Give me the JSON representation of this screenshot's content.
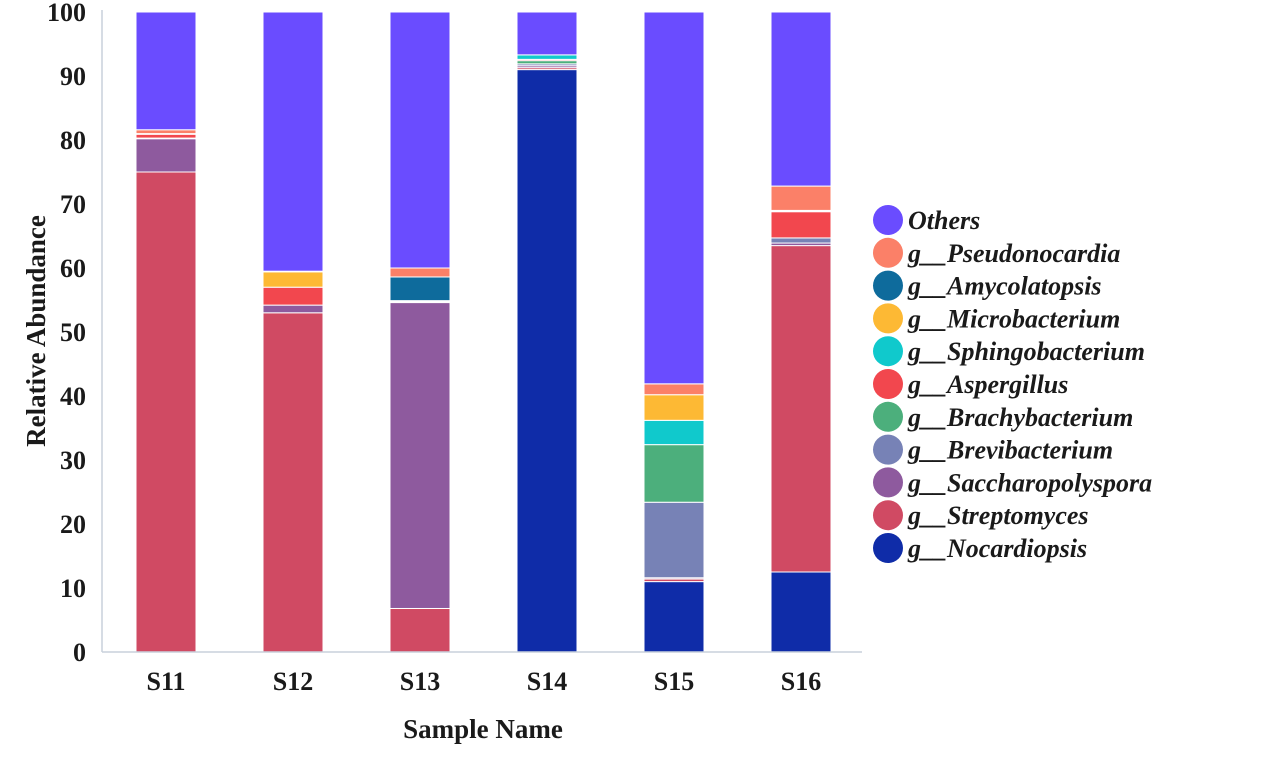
{
  "chart_data": {
    "type": "bar",
    "stacked": true,
    "xlabel": "Sample Name",
    "ylabel": "Relative Abundance",
    "ylim": [
      0,
      100
    ],
    "yticks": [
      0,
      10,
      20,
      30,
      40,
      50,
      60,
      70,
      80,
      90,
      100
    ],
    "categories": [
      "S11",
      "S12",
      "S13",
      "S14",
      "S15",
      "S16"
    ],
    "legend_position": "right",
    "series": [
      {
        "name": "g__Nocardiopsis",
        "color": "#0f2ca8",
        "values": [
          0,
          0,
          0,
          91.0,
          11.0,
          12.5
        ]
      },
      {
        "name": "g__Streptomyces",
        "color": "#d04a63",
        "values": [
          75.0,
          53.0,
          6.8,
          0.3,
          0.4,
          51.0
        ]
      },
      {
        "name": "g__Saccharopolyspora",
        "color": "#8e5a9e",
        "values": [
          5.2,
          1.2,
          47.8,
          0.3,
          0.2,
          0.4
        ]
      },
      {
        "name": "g__Brevibacterium",
        "color": "#7782b6",
        "values": [
          0.1,
          0,
          0.1,
          0.3,
          11.8,
          0.8
        ]
      },
      {
        "name": "g__Brachybacterium",
        "color": "#4caf7c",
        "values": [
          0,
          0,
          0,
          0.5,
          9.0,
          0
        ]
      },
      {
        "name": "g__Aspergillus",
        "color": "#f2474e",
        "values": [
          0.6,
          2.8,
          0.1,
          0.2,
          0,
          4.1
        ]
      },
      {
        "name": "g__Sphingobacterium",
        "color": "#10c9cc",
        "values": [
          0.1,
          0,
          0,
          0.7,
          3.8,
          0
        ]
      },
      {
        "name": "g__Microbacterium",
        "color": "#fdb934",
        "values": [
          0,
          2.4,
          0.1,
          0,
          4.0,
          0.1
        ]
      },
      {
        "name": "g__Amycolatopsis",
        "color": "#0e6b9c",
        "values": [
          0,
          0.1,
          3.7,
          0,
          0,
          0.1
        ]
      },
      {
        "name": "g__Pseudonocardia",
        "color": "#fb8068",
        "values": [
          0.6,
          0,
          1.4,
          0,
          1.7,
          3.8
        ]
      },
      {
        "name": "Others",
        "color": "#6a4cff",
        "values": [
          18.4,
          40.5,
          40.0,
          6.7,
          58.1,
          27.2
        ]
      }
    ]
  }
}
